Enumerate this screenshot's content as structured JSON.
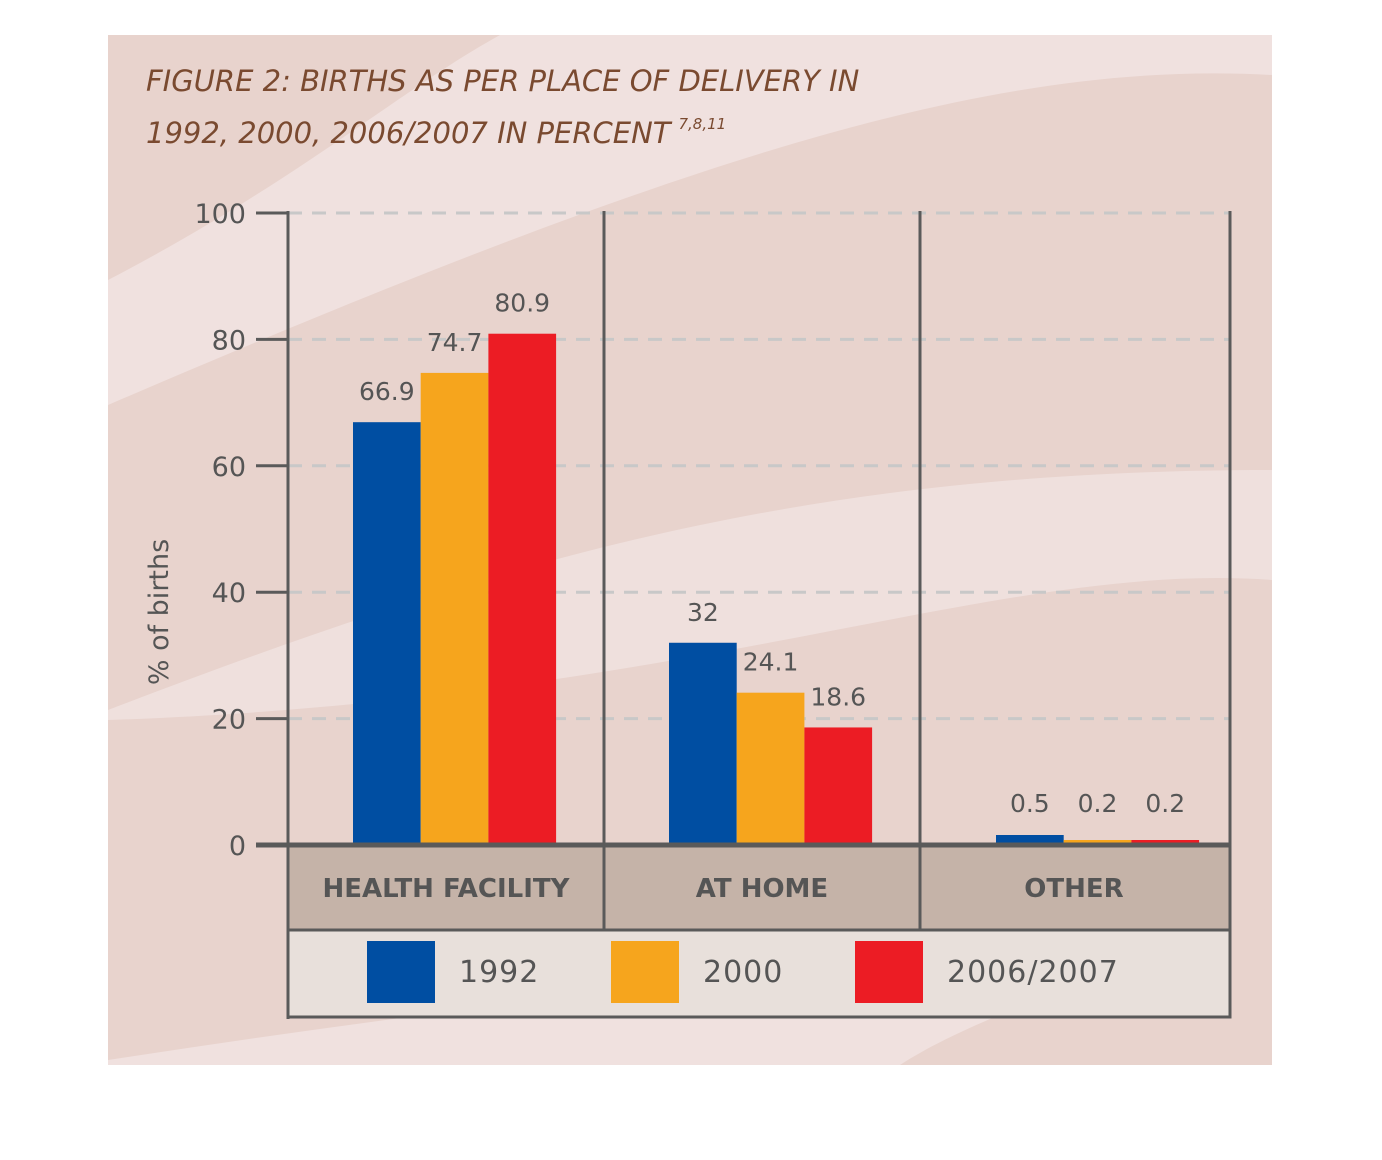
{
  "chart_data": {
    "type": "bar",
    "title_line1": "FIGURE 2: BIRTHS AS PER PLACE OF DELIVERY IN",
    "title_line2": "1992, 2000, 2006/2007 IN PERCENT",
    "title_superscript": "7,8,11",
    "ylabel": "% of births",
    "ylim": [
      0,
      100
    ],
    "yticks": [
      "0",
      "20",
      "40",
      "60",
      "80",
      "100"
    ],
    "grid": true,
    "categories": [
      "HEALTH FACILITY",
      "AT HOME",
      "OTHER"
    ],
    "series": [
      {
        "name": "1992",
        "color": "#004ea2",
        "values": [
          66.9,
          32,
          0.5
        ],
        "labels": [
          "66.9",
          "32",
          "0.5"
        ]
      },
      {
        "name": "2000",
        "color": "#f6a51d",
        "values": [
          74.7,
          24.1,
          0.2
        ],
        "labels": [
          "74.7",
          "24.1",
          "0.2"
        ]
      },
      {
        "name": "2006/2007",
        "color": "#ec1c24",
        "values": [
          80.9,
          18.6,
          0.2
        ],
        "labels": [
          "80.9",
          "18.6",
          "0.2"
        ]
      }
    ],
    "legend_position": "bottom",
    "colors": {
      "background": "#e8d3cd",
      "wave": "#f0e1df",
      "category_band": "#c5b3a8",
      "legend_box": "#e8e0db",
      "axis": "#5a5a5a",
      "grid": "#c8c8c8"
    }
  }
}
